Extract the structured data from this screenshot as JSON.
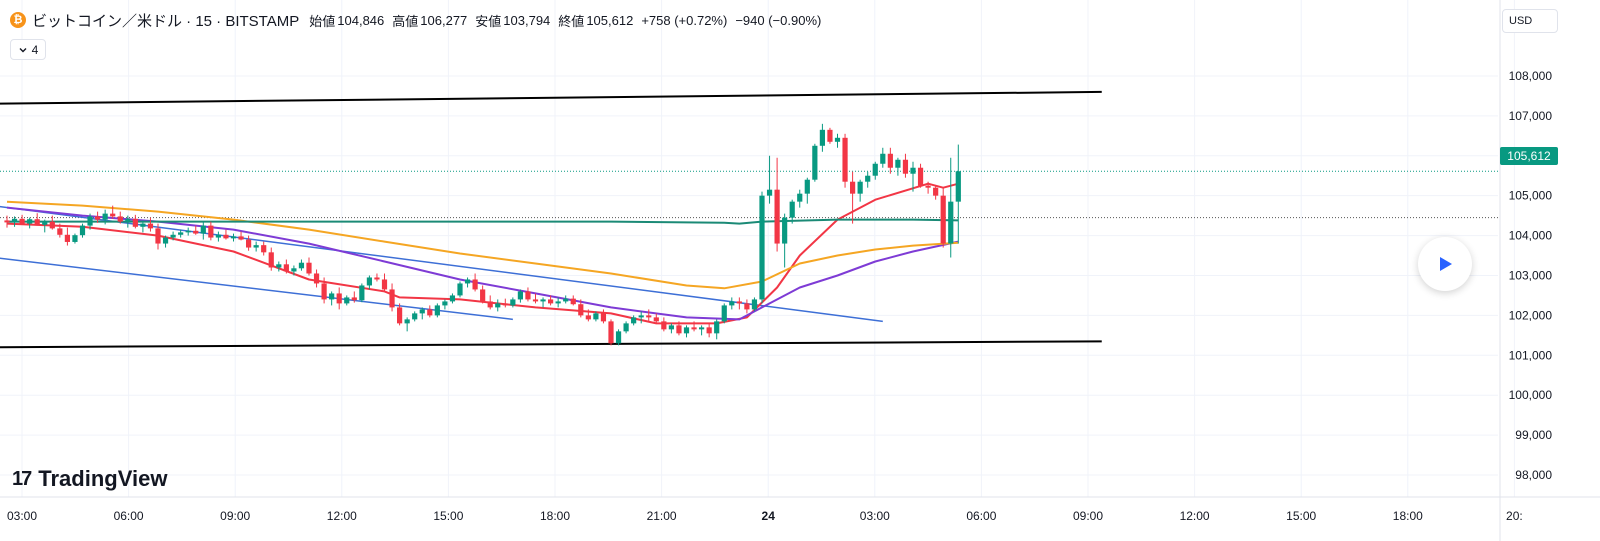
{
  "header": {
    "coin_icon": "bitcoin-icon",
    "coin_glyph": "₿",
    "symbol": "ビットコイン／米ドル · 15 · BITSTAMP",
    "open_label": "始値",
    "open_value": "104,846",
    "high_label": "高値",
    "high_value": "106,277",
    "low_label": "安値",
    "low_value": "103,794",
    "close_label": "終値",
    "close_value": "105,612",
    "change_up": "+758 (+0.72%)",
    "change_down": "−940 (−0.90%)"
  },
  "indicator_toggle": {
    "icon": "chevron-down-icon",
    "count": "4"
  },
  "currency": "USD",
  "last_price_label": "105,612",
  "logo": {
    "mark": "17",
    "text": "TradingView"
  },
  "colors": {
    "up": "#089981",
    "down": "#f23645",
    "ma_red": "#f23645",
    "ma_purple": "#7e3bd5",
    "ma_orange": "#f5a623",
    "ma_green": "#1b8a76",
    "trend_blue": "#3d6fd6",
    "channel": "#000000"
  },
  "chart_data": {
    "type": "candlestick",
    "symbol": "BTC/USD",
    "timeframe": "15",
    "ylim": [
      97800,
      108600
    ],
    "y_ticks": [
      98000,
      99000,
      100000,
      101000,
      102000,
      103000,
      104000,
      105000,
      106000,
      107000,
      108000
    ],
    "y_tick_labels": [
      "98,000",
      "99,000",
      "100,000",
      "101,000",
      "102,000",
      "103,000",
      "104,000",
      "105,000",
      "106,000",
      "107,000",
      "108,000"
    ],
    "x_tick_labels": [
      "03:00",
      "06:00",
      "09:00",
      "12:00",
      "15:00",
      "18:00",
      "21:00",
      "24",
      "03:00",
      "06:00",
      "09:00",
      "12:00",
      "15:00",
      "18:00",
      "20:"
    ],
    "last_price": 105612,
    "dotted_levels": [
      105612,
      104450
    ],
    "grid": true,
    "candles": [
      [
        104380,
        104500,
        104200,
        104330
      ],
      [
        104330,
        104480,
        104220,
        104420
      ],
      [
        104420,
        104520,
        104280,
        104300
      ],
      [
        104300,
        104450,
        104180,
        104410
      ],
      [
        104410,
        104560,
        104250,
        104270
      ],
      [
        104270,
        104400,
        104080,
        104350
      ],
      [
        104350,
        104500,
        104150,
        104180
      ],
      [
        104180,
        104300,
        103950,
        104020
      ],
      [
        104020,
        104200,
        103750,
        103840
      ],
      [
        103840,
        104050,
        103800,
        104010
      ],
      [
        104010,
        104300,
        103950,
        104250
      ],
      [
        104250,
        104550,
        104150,
        104480
      ],
      [
        104480,
        104600,
        104320,
        104400
      ],
      [
        104400,
        104650,
        104280,
        104550
      ],
      [
        104550,
        104750,
        104420,
        104480
      ],
      [
        104480,
        104600,
        104300,
        104350
      ],
      [
        104350,
        104500,
        104200,
        104420
      ],
      [
        104420,
        104520,
        104180,
        104220
      ],
      [
        104220,
        104380,
        104080,
        104300
      ],
      [
        104300,
        104450,
        104100,
        104180
      ],
      [
        104180,
        104300,
        103650,
        103800
      ],
      [
        103800,
        104000,
        103700,
        103950
      ],
      [
        103950,
        104100,
        103880,
        104020
      ],
      [
        104020,
        104150,
        103950,
        104080
      ],
      [
        104080,
        104200,
        104000,
        104120
      ],
      [
        104120,
        104250,
        104020,
        104050
      ],
      [
        104050,
        104350,
        103900,
        104250
      ],
      [
        104250,
        104350,
        103880,
        103950
      ],
      [
        103950,
        104100,
        103850,
        104020
      ],
      [
        104020,
        104150,
        103900,
        103930
      ],
      [
        103930,
        104050,
        103850,
        103980
      ],
      [
        103980,
        104100,
        103880,
        103900
      ],
      [
        103900,
        104000,
        103620,
        103700
      ],
      [
        103700,
        103850,
        103600,
        103760
      ],
      [
        103760,
        103850,
        103500,
        103580
      ],
      [
        103580,
        103700,
        103120,
        103200
      ],
      [
        103200,
        103350,
        103100,
        103280
      ],
      [
        103280,
        103400,
        103050,
        103100
      ],
      [
        103100,
        103250,
        103000,
        103180
      ],
      [
        103180,
        103400,
        103120,
        103320
      ],
      [
        103320,
        103450,
        103000,
        103050
      ],
      [
        103050,
        103150,
        102700,
        102800
      ],
      [
        102800,
        102950,
        102300,
        102400
      ],
      [
        102400,
        102600,
        102250,
        102550
      ],
      [
        102550,
        102700,
        102150,
        102300
      ],
      [
        102300,
        102500,
        102250,
        102450
      ],
      [
        102450,
        102600,
        102320,
        102380
      ],
      [
        102380,
        102800,
        102330,
        102750
      ],
      [
        102750,
        103000,
        102650,
        102950
      ],
      [
        102950,
        103050,
        102850,
        102900
      ],
      [
        102900,
        103050,
        102600,
        102650
      ],
      [
        102650,
        102800,
        102100,
        102200
      ],
      [
        102200,
        102300,
        101750,
        101800
      ],
      [
        101800,
        101950,
        101600,
        101900
      ],
      [
        101900,
        102100,
        101850,
        102050
      ],
      [
        102050,
        102200,
        101900,
        102150
      ],
      [
        102150,
        102250,
        101950,
        102000
      ],
      [
        102000,
        102300,
        101950,
        102250
      ],
      [
        102250,
        102400,
        102150,
        102350
      ],
      [
        102350,
        102550,
        102300,
        102500
      ],
      [
        102500,
        102850,
        102450,
        102800
      ],
      [
        102800,
        102950,
        102700,
        102900
      ],
      [
        102900,
        103050,
        102600,
        102650
      ],
      [
        102650,
        102750,
        102300,
        102350
      ],
      [
        102350,
        102500,
        102150,
        102200
      ],
      [
        102200,
        102400,
        102100,
        102300
      ],
      [
        102300,
        102420,
        102200,
        102250
      ],
      [
        102250,
        102450,
        102200,
        102400
      ],
      [
        102400,
        102650,
        102320,
        102600
      ],
      [
        102600,
        102700,
        102350,
        102400
      ],
      [
        102400,
        102550,
        102300,
        102350
      ],
      [
        102350,
        102450,
        102200,
        102400
      ],
      [
        102400,
        102500,
        102250,
        102300
      ],
      [
        102300,
        102450,
        102200,
        102350
      ],
      [
        102350,
        102500,
        102300,
        102420
      ],
      [
        102420,
        102500,
        102250,
        102280
      ],
      [
        102280,
        102400,
        101950,
        102000
      ],
      [
        102000,
        102150,
        101850,
        101900
      ],
      [
        101900,
        102100,
        101850,
        102050
      ],
      [
        102050,
        102150,
        101800,
        101850
      ],
      [
        101850,
        101900,
        101250,
        101300
      ],
      [
        101300,
        101650,
        101250,
        101600
      ],
      [
        101600,
        101850,
        101550,
        101800
      ],
      [
        101800,
        102000,
        101750,
        101950
      ],
      [
        101950,
        102100,
        101800,
        102000
      ],
      [
        102000,
        102150,
        101850,
        101950
      ],
      [
        101950,
        102050,
        101800,
        101850
      ],
      [
        101850,
        101950,
        101600,
        101650
      ],
      [
        101650,
        101800,
        101550,
        101750
      ],
      [
        101750,
        101850,
        101500,
        101550
      ],
      [
        101550,
        101750,
        101450,
        101700
      ],
      [
        101700,
        101850,
        101600,
        101650
      ],
      [
        101650,
        101750,
        101500,
        101700
      ],
      [
        101700,
        101800,
        101450,
        101550
      ],
      [
        101550,
        101900,
        101400,
        101850
      ],
      [
        101850,
        102300,
        101800,
        102250
      ],
      [
        102250,
        102450,
        102150,
        102350
      ],
      [
        102350,
        102450,
        102150,
        102300
      ],
      [
        102300,
        102400,
        102050,
        102150
      ],
      [
        102150,
        102450,
        102100,
        102400
      ],
      [
        102400,
        105100,
        102300,
        105000
      ],
      [
        105000,
        106000,
        104800,
        105150
      ],
      [
        105150,
        105950,
        103600,
        103800
      ],
      [
        103800,
        104550,
        103200,
        104450
      ],
      [
        104450,
        104900,
        104300,
        104850
      ],
      [
        104850,
        105150,
        104700,
        105050
      ],
      [
        105050,
        105450,
        104800,
        105400
      ],
      [
        105400,
        106300,
        105350,
        106250
      ],
      [
        106250,
        106800,
        106100,
        106650
      ],
      [
        106650,
        106700,
        106300,
        106350
      ],
      [
        106350,
        106550,
        106200,
        106450
      ],
      [
        106450,
        106550,
        105200,
        105350
      ],
      [
        105350,
        105600,
        104300,
        105050
      ],
      [
        105050,
        105400,
        104850,
        105350
      ],
      [
        105350,
        105600,
        105200,
        105500
      ],
      [
        105500,
        105850,
        105400,
        105800
      ],
      [
        105800,
        106200,
        105700,
        106050
      ],
      [
        106050,
        106200,
        105550,
        105700
      ],
      [
        105700,
        105950,
        105500,
        105900
      ],
      [
        105900,
        106050,
        105450,
        105550
      ],
      [
        105550,
        105850,
        105100,
        105700
      ],
      [
        105700,
        105800,
        105200,
        105250
      ],
      [
        105250,
        105350,
        105050,
        105200
      ],
      [
        105200,
        105250,
        104900,
        105000
      ],
      [
        105000,
        105200,
        103700,
        103800
      ],
      [
        103800,
        105950,
        103450,
        104850
      ],
      [
        104850,
        106280,
        103800,
        105612
      ]
    ],
    "series": [
      {
        "name": "",
        "color": "#f23645",
        "x": [
          0,
          10,
          20,
          30,
          40,
          50,
          52,
          60,
          70,
          80,
          86,
          94,
          98,
          102,
          105,
          110,
          115,
          122,
          124,
          126
        ],
        "values": [
          104300,
          104220,
          104000,
          103600,
          102900,
          102600,
          102450,
          102400,
          102200,
          102050,
          101800,
          101800,
          101950,
          102700,
          103500,
          104400,
          104900,
          105300,
          105200,
          105300
        ]
      },
      {
        "name": "",
        "color": "#7e3bd5",
        "x": [
          0,
          10,
          20,
          30,
          40,
          50,
          60,
          70,
          80,
          90,
          97,
          100,
          105,
          110,
          115,
          120,
          126
        ],
        "values": [
          104700,
          104500,
          104350,
          104150,
          103800,
          103350,
          102900,
          102550,
          102200,
          101950,
          101900,
          102200,
          102700,
          103000,
          103350,
          103600,
          103850
        ]
      },
      {
        "name": "",
        "color": "#f5a623",
        "x": [
          0,
          10,
          20,
          30,
          40,
          50,
          60,
          70,
          80,
          90,
          95,
          100,
          105,
          110,
          115,
          120,
          126
        ],
        "values": [
          104850,
          104750,
          104600,
          104400,
          104150,
          103850,
          103550,
          103300,
          103050,
          102750,
          102680,
          102850,
          103300,
          103500,
          103650,
          103750,
          103820
        ]
      },
      {
        "name": "",
        "color": "#1b8a76",
        "x": [
          0,
          20,
          40,
          60,
          80,
          95,
          97,
          100,
          110,
          120,
          126
        ],
        "values": [
          104350,
          104350,
          104350,
          104350,
          104350,
          104320,
          104300,
          104350,
          104400,
          104400,
          104380
        ]
      }
    ],
    "trend_lines": [
      {
        "color": "#000000",
        "points": [
          [
            -4,
            107300
          ],
          [
            145,
            107600
          ]
        ]
      },
      {
        "color": "#000000",
        "points": [
          [
            -4,
            101200
          ],
          [
            145,
            101350
          ]
        ]
      },
      {
        "color": "#3d6fd6",
        "points": [
          [
            -4,
            103500
          ],
          [
            67,
            101900
          ]
        ]
      },
      {
        "color": "#3d6fd6",
        "points": [
          [
            -4,
            104800
          ],
          [
            116,
            101850
          ]
        ]
      }
    ]
  }
}
